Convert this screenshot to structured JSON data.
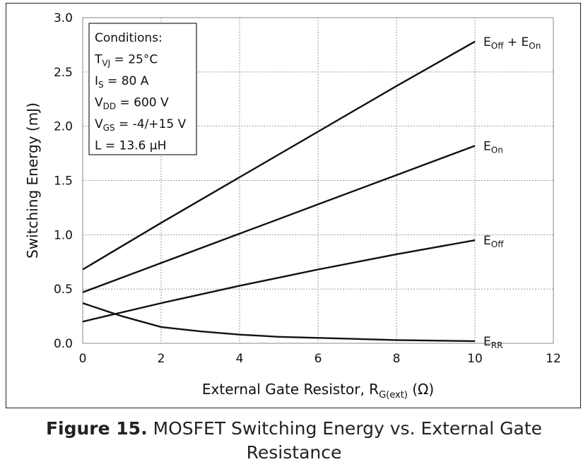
{
  "chart_data": {
    "type": "line",
    "xlabel": "External Gate Resistor, R",
    "xlabel_sub": "G(ext)",
    "xlabel_unit": "(Ω)",
    "ylabel": "Switching Energy (mJ)",
    "xlim": [
      0,
      12
    ],
    "ylim": [
      0,
      3.0
    ],
    "x_ticks": [
      "0",
      "2",
      "4",
      "6",
      "8",
      "10",
      "12"
    ],
    "y_ticks": [
      "0.0",
      "0.5",
      "1.0",
      "1.5",
      "2.0",
      "2.5",
      "3.0"
    ],
    "grid": true,
    "series": [
      {
        "name": "E_Off + E_On",
        "label_parts": [
          [
            "E",
            ""
          ],
          [
            "Off",
            "sub"
          ],
          [
            " + E",
            ""
          ],
          [
            "On",
            "sub"
          ]
        ],
        "x": [
          0,
          2,
          4,
          6,
          8,
          10
        ],
        "y": [
          0.68,
          1.11,
          1.53,
          1.95,
          2.37,
          2.78
        ]
      },
      {
        "name": "E_On",
        "label_parts": [
          [
            "E",
            ""
          ],
          [
            "On",
            "sub"
          ]
        ],
        "x": [
          0,
          2,
          4,
          6,
          8,
          10
        ],
        "y": [
          0.47,
          0.74,
          1.01,
          1.28,
          1.55,
          1.82
        ]
      },
      {
        "name": "E_Off",
        "label_parts": [
          [
            "E",
            ""
          ],
          [
            "Off",
            "sub"
          ]
        ],
        "x": [
          0,
          2,
          4,
          6,
          8,
          10
        ],
        "y": [
          0.2,
          0.37,
          0.53,
          0.68,
          0.82,
          0.95
        ]
      },
      {
        "name": "E_RR",
        "label_parts": [
          [
            "E",
            ""
          ],
          [
            "RR",
            "sub"
          ]
        ],
        "x": [
          0,
          0.5,
          1,
          2,
          3,
          4,
          5,
          6,
          7,
          8,
          9,
          10
        ],
        "y": [
          0.37,
          0.31,
          0.25,
          0.15,
          0.11,
          0.08,
          0.06,
          0.05,
          0.04,
          0.03,
          0.025,
          0.02
        ]
      }
    ],
    "annotations": {
      "conditions": [
        [
          [
            "Conditions:",
            ""
          ]
        ],
        [
          [
            "T",
            ""
          ],
          [
            "VJ",
            "sub"
          ],
          [
            " = 25°C",
            ""
          ]
        ],
        [
          [
            "I",
            ""
          ],
          [
            "S",
            "sub"
          ],
          [
            " = 80 A",
            ""
          ]
        ],
        [
          [
            "V",
            ""
          ],
          [
            "DD",
            "sub"
          ],
          [
            " = 600 V",
            ""
          ]
        ],
        [
          [
            "V",
            ""
          ],
          [
            "GS",
            "sub"
          ],
          [
            " = -4/+15 V",
            ""
          ]
        ],
        [
          [
            "L = 13.6 µH",
            ""
          ]
        ]
      ]
    }
  },
  "caption": {
    "figure_number": "Figure 15.",
    "text": " MOSFET Switching Energy vs. External Gate Resistance"
  }
}
